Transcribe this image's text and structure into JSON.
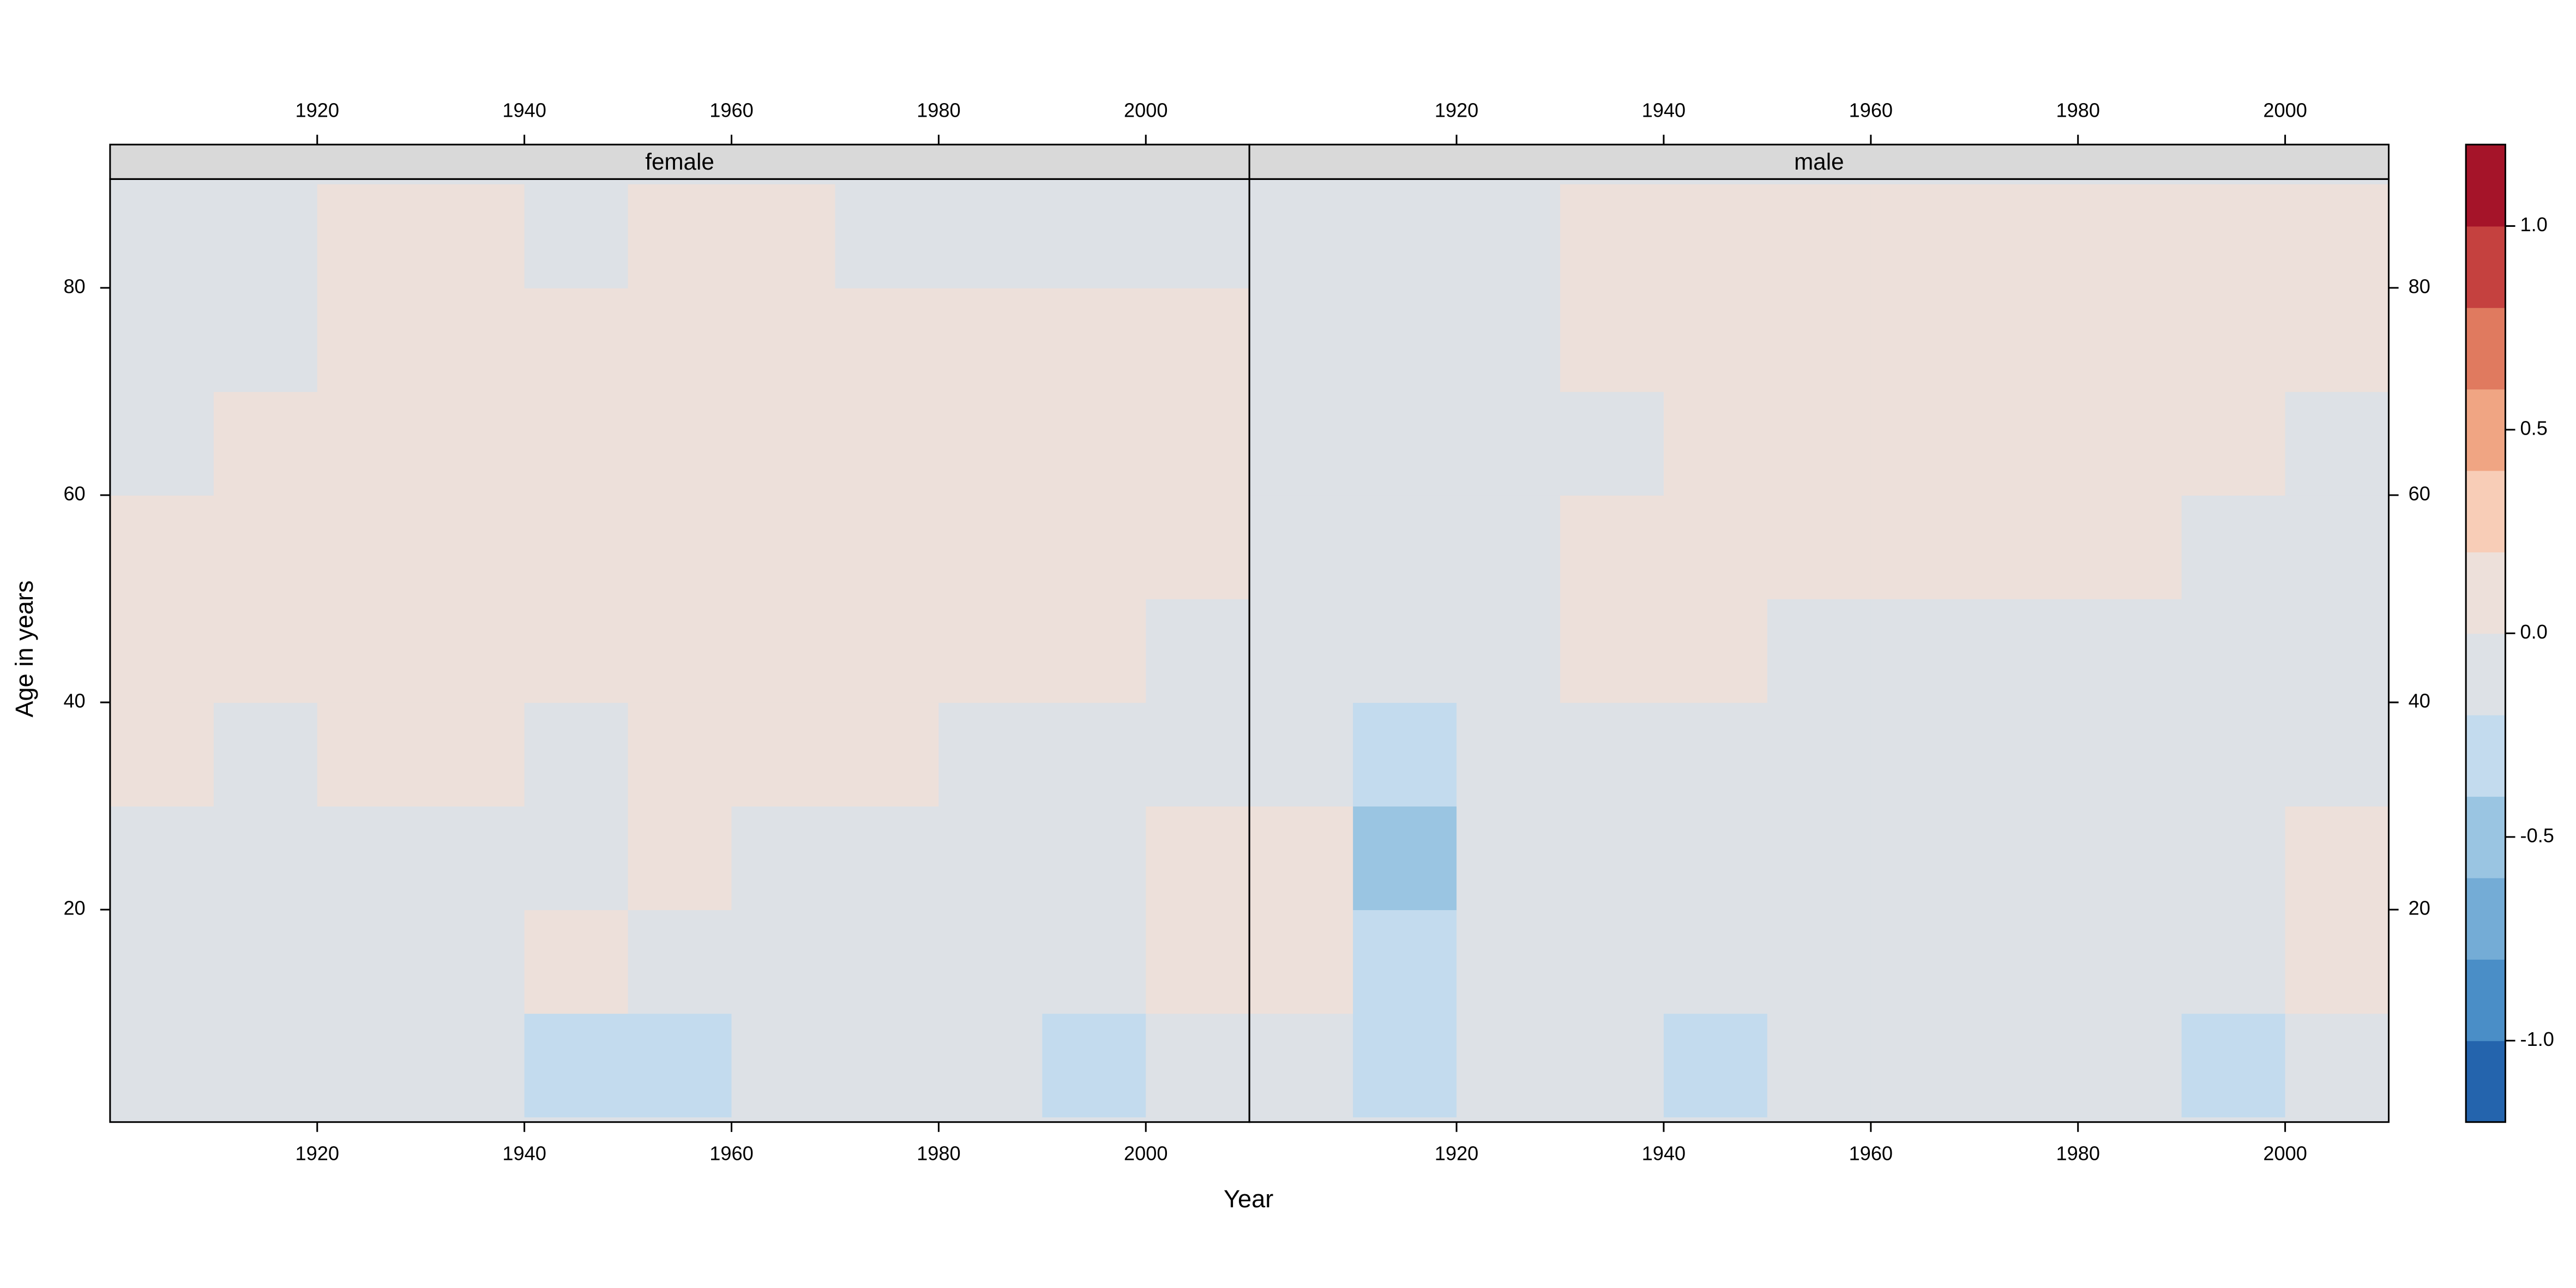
{
  "chart_data": {
    "type": "heatmap",
    "xlabel": "Year",
    "ylabel": "Age in years",
    "xlim": [
      1900,
      2010
    ],
    "ylim": [
      -0.5,
      90.5
    ],
    "xticks": [
      1920,
      1940,
      1960,
      1980,
      2000
    ],
    "yticks": [
      20,
      40,
      60,
      80
    ],
    "x_bins": [
      1900,
      1910,
      1920,
      1930,
      1940,
      1950,
      1960,
      1970,
      1980,
      1990,
      2000,
      2010
    ],
    "y_bins": [
      0,
      10,
      20,
      30,
      40,
      50,
      60,
      70,
      80,
      90
    ],
    "panels": [
      {
        "name": "female",
        "values": [
          [
            -0.1,
            -0.1,
            -0.1,
            -0.1,
            -0.3,
            -0.3,
            -0.1,
            -0.1,
            -0.1,
            -0.3,
            -0.1
          ],
          [
            -0.1,
            -0.1,
            -0.1,
            -0.1,
            0.1,
            -0.1,
            -0.1,
            -0.1,
            -0.1,
            -0.1,
            0.1
          ],
          [
            -0.1,
            -0.1,
            -0.1,
            -0.1,
            -0.1,
            0.1,
            -0.1,
            -0.1,
            -0.1,
            -0.1,
            0.1
          ],
          [
            0.1,
            -0.1,
            0.1,
            0.1,
            -0.1,
            0.1,
            0.1,
            0.1,
            -0.1,
            -0.1,
            -0.1
          ],
          [
            0.1,
            0.1,
            0.1,
            0.1,
            0.1,
            0.1,
            0.1,
            0.1,
            0.1,
            0.1,
            -0.1
          ],
          [
            0.1,
            0.1,
            0.1,
            0.1,
            0.1,
            0.1,
            0.1,
            0.1,
            0.1,
            0.1,
            0.1
          ],
          [
            -0.1,
            0.1,
            0.1,
            0.1,
            0.1,
            0.1,
            0.1,
            0.1,
            0.1,
            0.1,
            0.1
          ],
          [
            -0.1,
            -0.1,
            0.1,
            0.1,
            0.1,
            0.1,
            0.1,
            0.1,
            0.1,
            0.1,
            0.1
          ],
          [
            -0.1,
            -0.1,
            0.1,
            0.1,
            -0.1,
            0.1,
            0.1,
            -0.1,
            -0.1,
            -0.1,
            -0.1
          ]
        ]
      },
      {
        "name": "male",
        "values": [
          [
            -0.1,
            -0.3,
            -0.1,
            -0.1,
            -0.3,
            -0.1,
            -0.1,
            -0.1,
            -0.1,
            -0.3,
            -0.1
          ],
          [
            0.1,
            -0.3,
            -0.1,
            -0.1,
            -0.1,
            -0.1,
            -0.1,
            -0.1,
            -0.1,
            -0.1,
            0.1
          ],
          [
            0.1,
            -0.5,
            -0.1,
            -0.1,
            -0.1,
            -0.1,
            -0.1,
            -0.1,
            -0.1,
            -0.1,
            0.1
          ],
          [
            -0.1,
            -0.3,
            -0.1,
            -0.1,
            -0.1,
            -0.1,
            -0.1,
            -0.1,
            -0.1,
            -0.1,
            -0.1
          ],
          [
            -0.1,
            -0.1,
            -0.1,
            0.1,
            0.1,
            -0.1,
            -0.1,
            -0.1,
            -0.1,
            -0.1,
            -0.1
          ],
          [
            -0.1,
            -0.1,
            -0.1,
            0.1,
            0.1,
            0.1,
            0.1,
            0.1,
            0.1,
            -0.1,
            -0.1
          ],
          [
            -0.1,
            -0.1,
            -0.1,
            -0.1,
            0.1,
            0.1,
            0.1,
            0.1,
            0.1,
            0.1,
            -0.1
          ],
          [
            -0.1,
            -0.1,
            -0.1,
            0.1,
            0.1,
            0.1,
            0.1,
            0.1,
            0.1,
            0.1,
            0.1
          ],
          [
            -0.1,
            -0.1,
            -0.1,
            0.1,
            0.1,
            0.1,
            0.1,
            0.1,
            0.1,
            0.1,
            0.1
          ]
        ]
      }
    ],
    "colorbar": {
      "breaks": [
        -1.2,
        -1.0,
        -0.8,
        -0.6,
        -0.4,
        -0.2,
        0,
        0.2,
        0.4,
        0.6,
        0.8,
        1.0,
        1.2
      ],
      "colors": [
        "#2464ad",
        "#4a8ec7",
        "#74acd6",
        "#9ac5e2",
        "#c3dbee",
        "#dde1e6",
        "#ede0da",
        "#f8cdb7",
        "#f0a583",
        "#e07a5f",
        "#c5413f",
        "#a51429"
      ],
      "ticks": [
        {
          "value": -1,
          "label": "-1.0"
        },
        -0.5,
        {
          "value": 0,
          "label": "0.0"
        },
        0.5,
        {
          "value": 1,
          "label": "1.0"
        }
      ]
    }
  }
}
